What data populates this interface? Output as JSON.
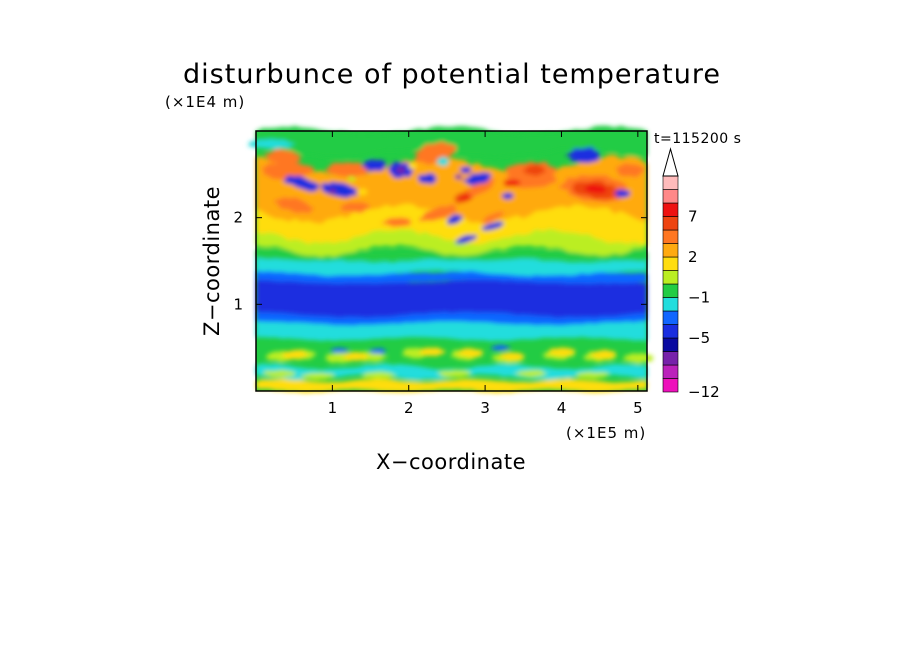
{
  "chart_data": {
    "type": "heatmap",
    "title": "disturbunce of potential temperature",
    "xlabel": "X−coordinate",
    "ylabel": "Z−coordinate",
    "x_unit": "(×1E5 m)",
    "y_unit": "(×1E4 m)",
    "time_label": "t=115200 s",
    "xlim": [
      0.0,
      5.12
    ],
    "ylim": [
      0.0,
      3.0
    ],
    "x_ticks": [
      1,
      2,
      3,
      4,
      5
    ],
    "y_ticks": [
      1,
      2
    ],
    "grid": false,
    "colorbar": {
      "levels": [
        -12,
        -10,
        -8,
        -6,
        -5,
        -3,
        -2,
        -1,
        0,
        1,
        2,
        3,
        5,
        7,
        8,
        10,
        12
      ],
      "labeled_levels": [
        -12,
        -5,
        -1,
        2,
        7
      ],
      "colors": [
        "#ee11bb",
        "#bb22bb",
        "#7722aa",
        "#0a0aa0",
        "#1a2ee0",
        "#1166ff",
        "#22dddd",
        "#22cc44",
        "#bbee22",
        "#ffdd11",
        "#ffaa11",
        "#ff7722",
        "#ee4411",
        "#ee1111",
        "#ff8888",
        "#ffbbbb"
      ],
      "extend": "max"
    },
    "features": [
      {
        "z_range": [
          0.0,
          0.25
        ],
        "value": "1 to 3",
        "note": "warm patches near ground"
      },
      {
        "z_range": [
          0.3,
          0.85
        ],
        "value": "0 to 2",
        "note": "mixed layer"
      },
      {
        "z_range": [
          0.9,
          1.3
        ],
        "value": "-5 to -3",
        "note": "cold band"
      },
      {
        "z_range": [
          1.3,
          1.7
        ],
        "value": "-2 to 0",
        "note": "transition"
      },
      {
        "z_range": [
          1.7,
          2.9
        ],
        "value": "-10 to 10",
        "note": "wave pattern"
      }
    ]
  }
}
